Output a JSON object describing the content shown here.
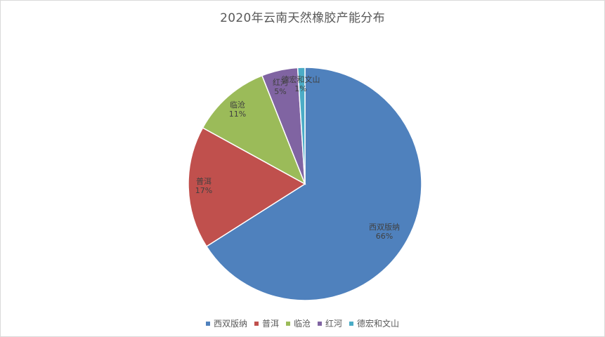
{
  "chart_data": {
    "type": "pie",
    "title": "2020年云南天然橡胶产能分布",
    "legend_position": "bottom",
    "slices": [
      {
        "name": "西双版纳",
        "percent_label": "66%",
        "value": 66,
        "color": "#4F81BD"
      },
      {
        "name": "普洱",
        "percent_label": "17%",
        "value": 17,
        "color": "#C0504D"
      },
      {
        "name": "临沧",
        "percent_label": "11%",
        "value": 11,
        "color": "#9BBB59"
      },
      {
        "name": "红河",
        "percent_label": "5%",
        "value": 5,
        "color": "#8064A2"
      },
      {
        "name": "德宏和文山",
        "percent_label": "1%",
        "value": 1,
        "color": "#4BACC6"
      }
    ]
  }
}
